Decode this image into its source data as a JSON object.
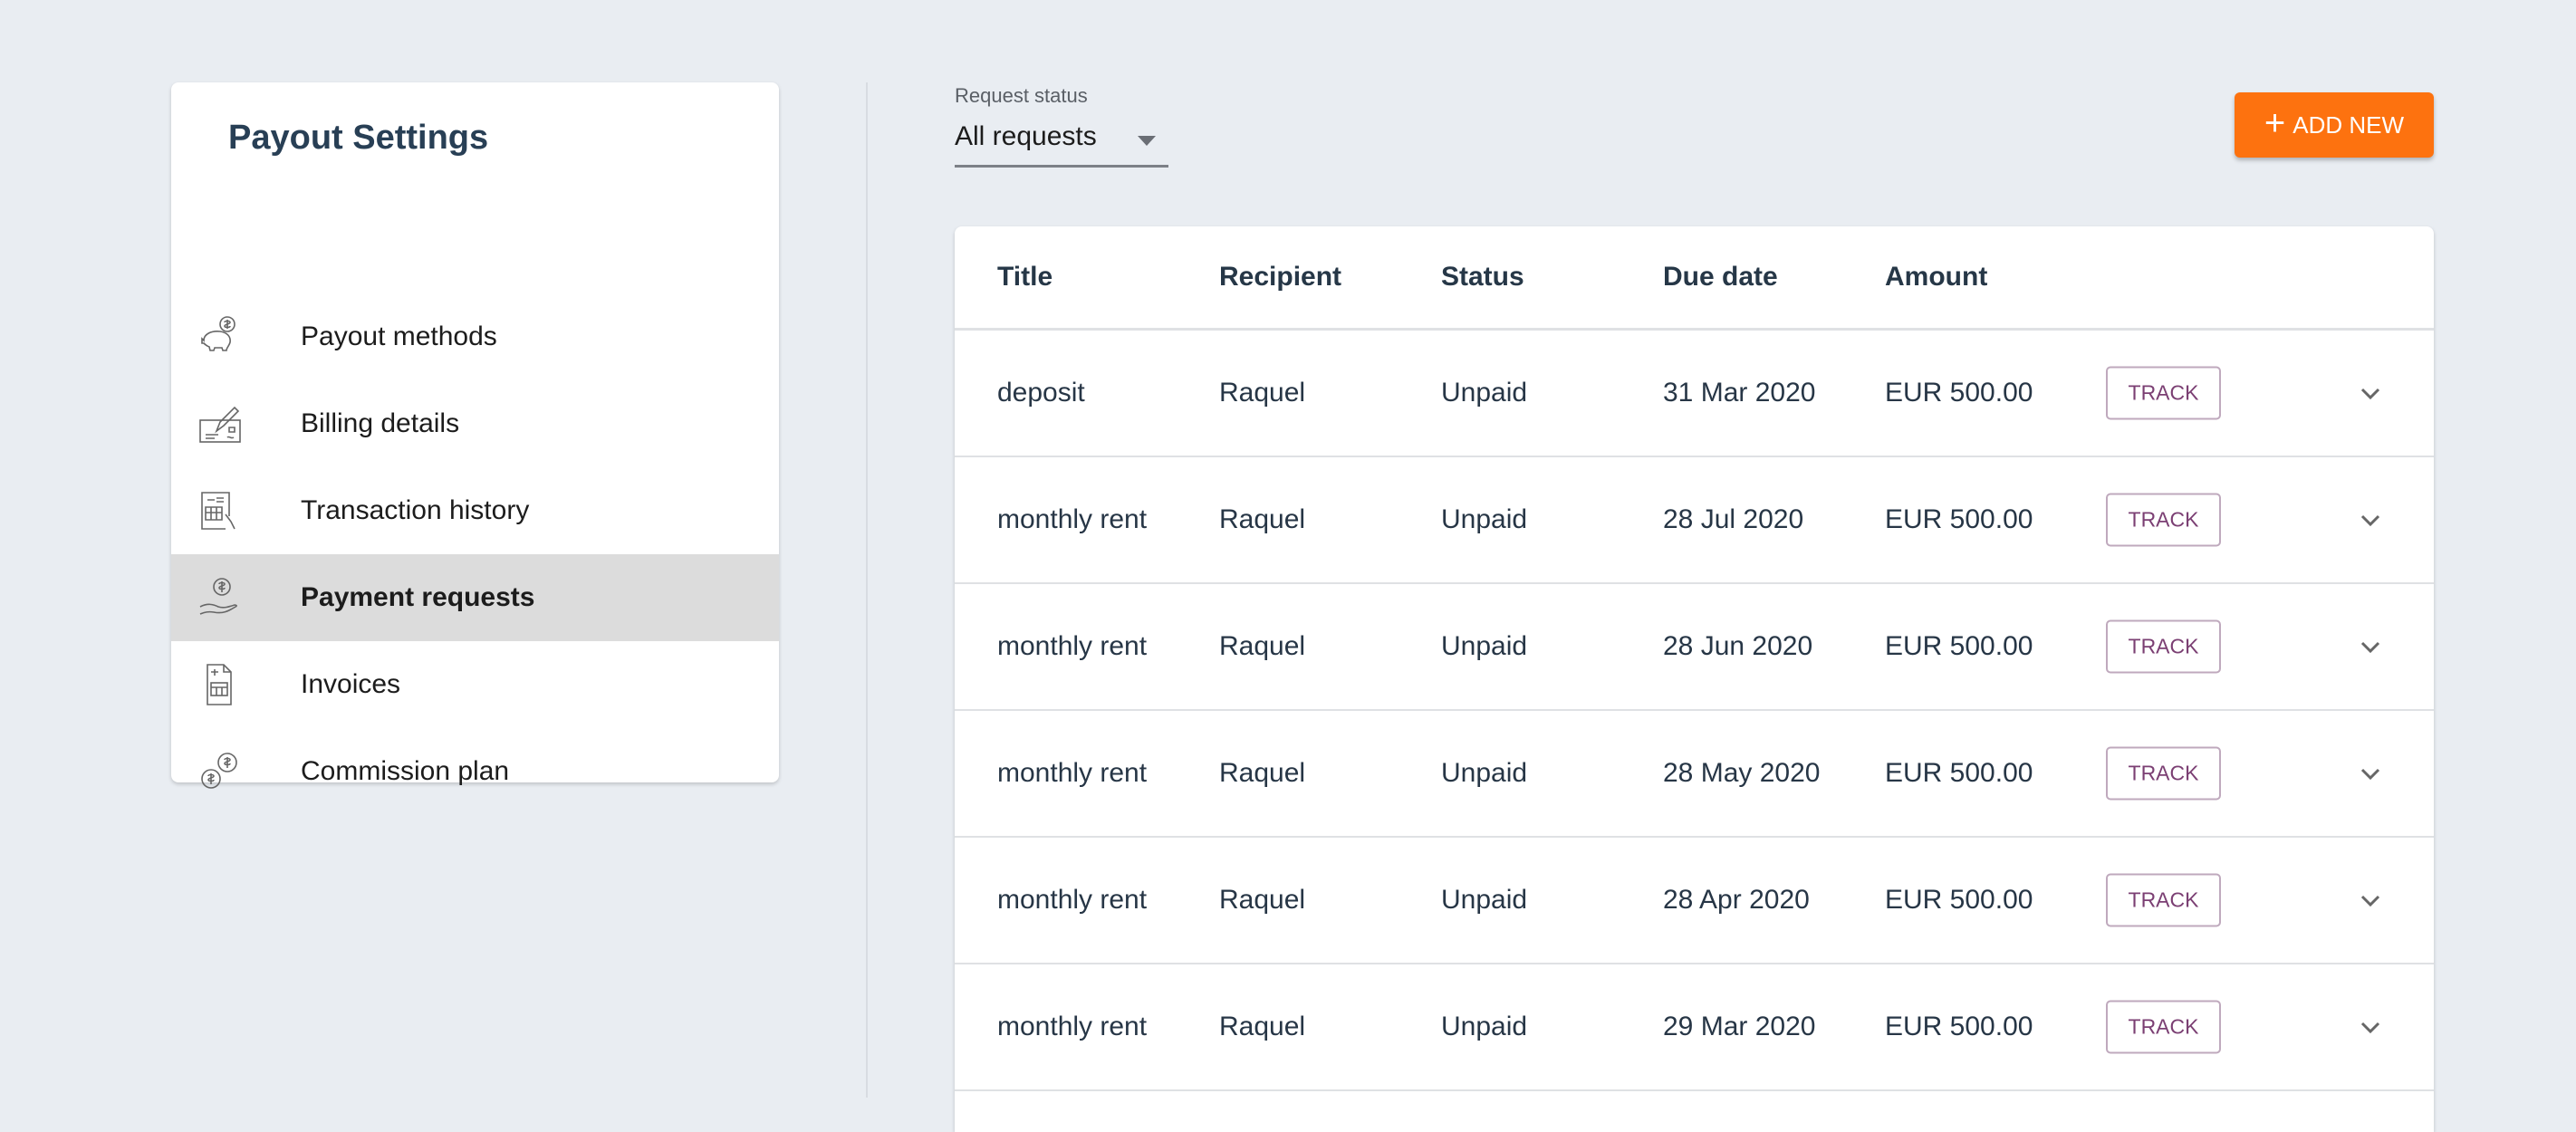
{
  "sidebar": {
    "title": "Payout Settings",
    "items": [
      {
        "label": "Payout methods",
        "icon": "piggy-bank-icon",
        "active": false
      },
      {
        "label": "Billing details",
        "icon": "cheque-pen-icon",
        "active": false
      },
      {
        "label": "Transaction history",
        "icon": "statement-icon",
        "active": false
      },
      {
        "label": "Payment requests",
        "icon": "hand-coin-icon",
        "active": true
      },
      {
        "label": "Invoices",
        "icon": "invoice-icon",
        "active": false
      },
      {
        "label": "Commission plan",
        "icon": "coins-icon",
        "active": false
      }
    ]
  },
  "filter": {
    "label": "Request status",
    "value": "All requests"
  },
  "add_button": {
    "label": "ADD NEW",
    "color": "#fd720f"
  },
  "table": {
    "headers": [
      "Title",
      "Recipient",
      "Status",
      "Due date",
      "Amount"
    ],
    "track_label": "TRACK",
    "rows": [
      [
        "deposit",
        "Raquel",
        "Unpaid",
        "31 Mar 2020",
        "EUR 500.00"
      ],
      [
        "monthly rent",
        "Raquel",
        "Unpaid",
        "28 Jul 2020",
        "EUR 500.00"
      ],
      [
        "monthly rent",
        "Raquel",
        "Unpaid",
        "28 Jun 2020",
        "EUR 500.00"
      ],
      [
        "monthly rent",
        "Raquel",
        "Unpaid",
        "28 May 2020",
        "EUR 500.00"
      ],
      [
        "monthly rent",
        "Raquel",
        "Unpaid",
        "28 Apr 2020",
        "EUR 500.00"
      ],
      [
        "monthly rent",
        "Raquel",
        "Unpaid",
        "29 Mar 2020",
        "EUR 500.00"
      ]
    ]
  }
}
